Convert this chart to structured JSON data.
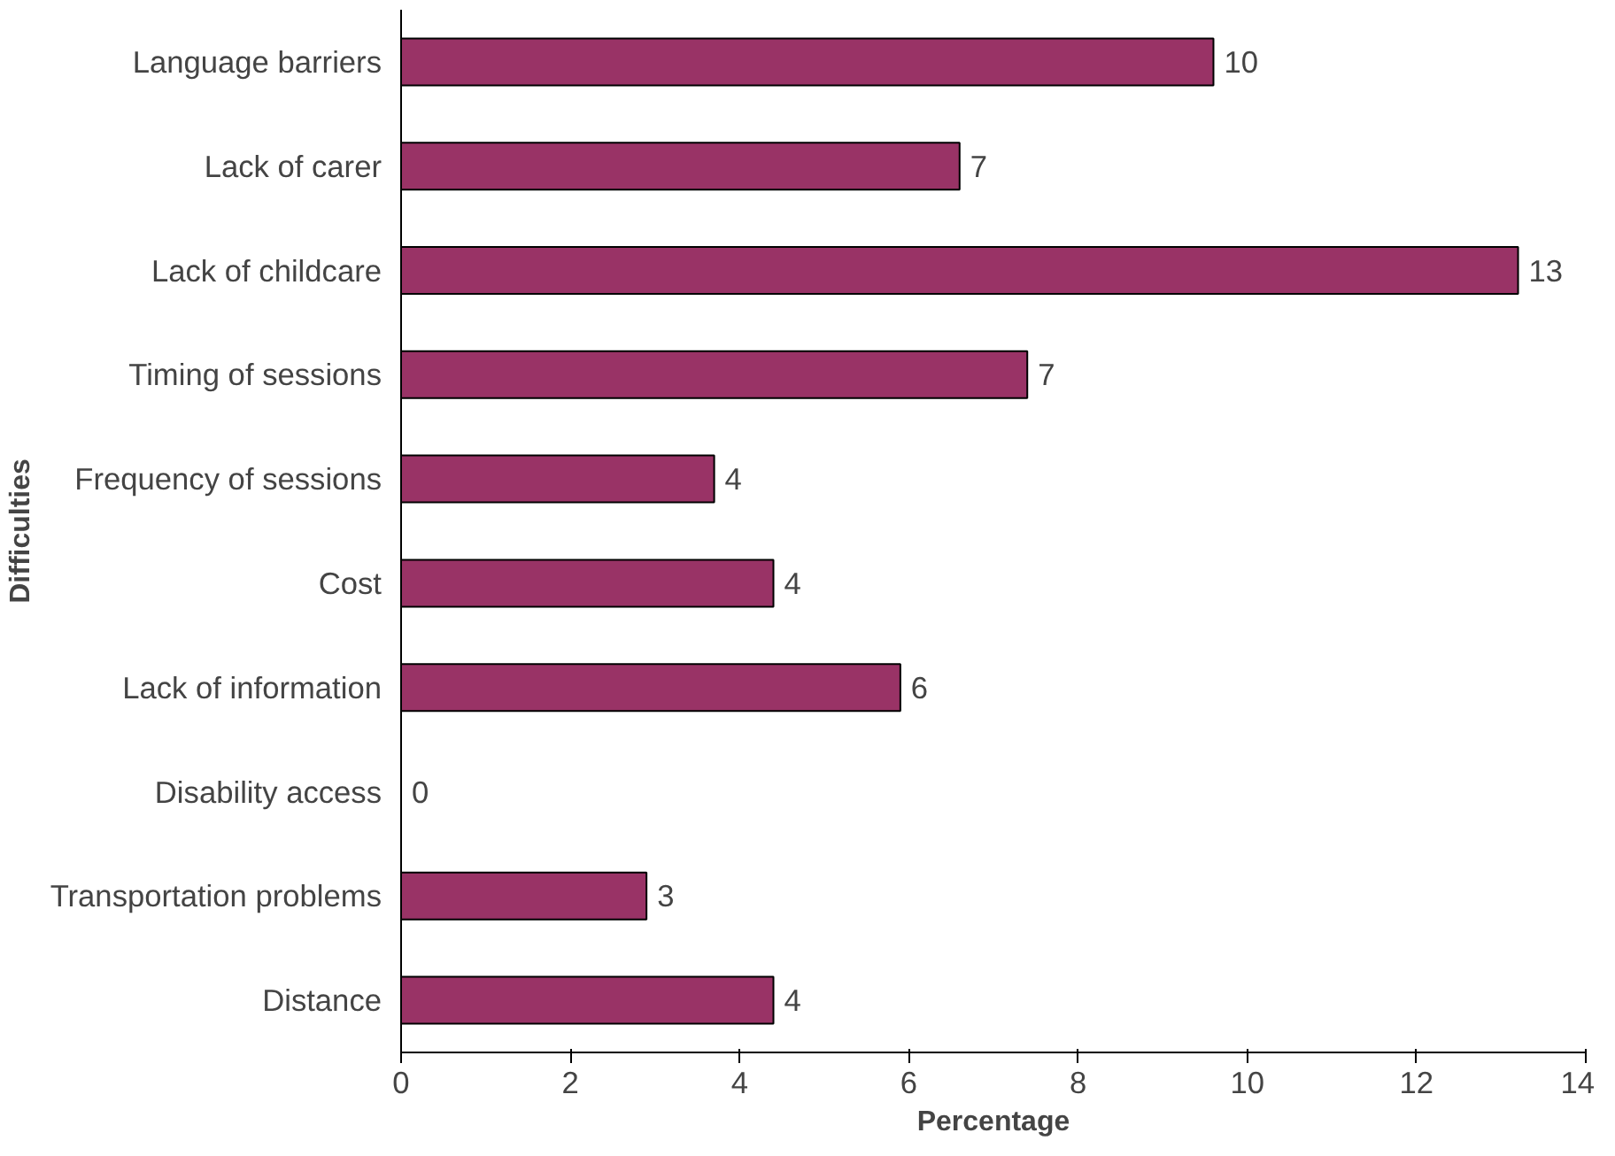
{
  "chart_data": {
    "type": "bar",
    "orientation": "horizontal",
    "xlabel": "Percentage",
    "ylabel": "Difficulties",
    "categories": [
      "Language barriers",
      "Lack of carer",
      "Lack of childcare",
      "Timing of sessions",
      "Frequency of sessions",
      "Cost",
      "Lack of information",
      "Disability access",
      "Transportation problems",
      "Distance"
    ],
    "values": [
      9.6,
      6.6,
      13.2,
      7.4,
      3.7,
      4.4,
      5.9,
      0,
      2.9,
      4.4
    ],
    "value_labels": [
      "10",
      "7",
      "13",
      "7",
      "4",
      "4",
      "6",
      "0",
      "3",
      "4"
    ],
    "color": "#993366",
    "xlim": [
      0,
      14
    ],
    "xticks": [
      0,
      2,
      4,
      6,
      8,
      10,
      12,
      14
    ],
    "grid": false
  }
}
